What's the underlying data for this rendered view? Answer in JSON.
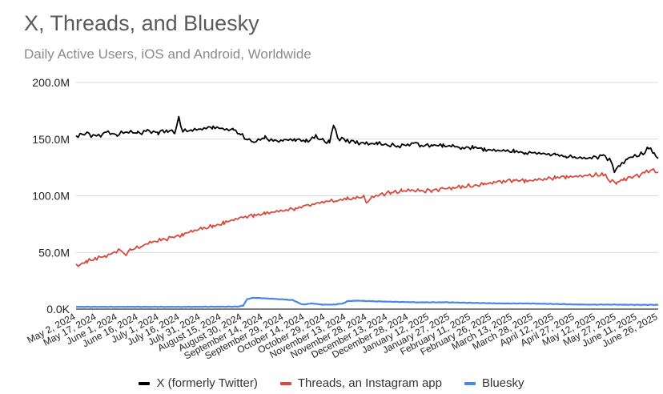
{
  "title": "X, Threads, and Bluesky",
  "subtitle": "Daily Active Users, iOS and Android, Worldwide",
  "chart_data": {
    "type": "line",
    "title": "X, Threads, and Bluesky",
    "subtitle": "Daily Active Users, iOS and Android, Worldwide",
    "xlabel": "",
    "ylabel": "",
    "ylim": [
      0,
      200
    ],
    "y_unit": "millions",
    "y_ticks": [
      0,
      50,
      100,
      150,
      200
    ],
    "y_tick_labels": [
      "0.0K",
      "50.0M",
      "100.0M",
      "150.0M",
      "200.0M"
    ],
    "grid": "horizontal",
    "legend_position": "bottom-center",
    "x_tick_labels": [
      "May 2, 2024",
      "May 17, 2024",
      "June 1, 2024",
      "June 16, 2024",
      "July 1, 2024",
      "July 16, 2024",
      "July 31, 2024",
      "August 15, 2024",
      "August 30, 2024",
      "September 14, 2024",
      "September 29, 2024",
      "October 14, 2024",
      "October 29, 2024",
      "November 13, 2024",
      "November 28, 2024",
      "December 13, 2024",
      "December 28, 2024",
      "January 12, 2025",
      "January 27, 2025",
      "February 11, 2025",
      "February 26, 2025",
      "March 13, 2025",
      "March 28, 2025",
      "April 12, 2025",
      "April 27, 2025",
      "May 12, 2025",
      "May 27, 2025",
      "June 11, 2025",
      "June 26, 2025"
    ],
    "x_day_span": [
      0,
      425
    ],
    "series": [
      {
        "name": "X (formerly Twitter)",
        "color": "#000000",
        "points": [
          [
            0,
            153
          ],
          [
            8,
            155
          ],
          [
            15,
            152
          ],
          [
            22,
            156
          ],
          [
            30,
            154
          ],
          [
            37,
            157
          ],
          [
            45,
            155
          ],
          [
            52,
            157
          ],
          [
            60,
            156
          ],
          [
            67,
            158
          ],
          [
            72,
            156
          ],
          [
            75,
            168
          ],
          [
            78,
            157
          ],
          [
            85,
            158
          ],
          [
            92,
            159
          ],
          [
            100,
            161
          ],
          [
            107,
            159
          ],
          [
            115,
            158
          ],
          [
            120,
            154
          ],
          [
            125,
            150
          ],
          [
            130,
            148
          ],
          [
            138,
            151
          ],
          [
            145,
            148
          ],
          [
            152,
            149
          ],
          [
            160,
            150
          ],
          [
            168,
            148
          ],
          [
            175,
            152
          ],
          [
            180,
            149
          ],
          [
            185,
            147
          ],
          [
            188,
            163
          ],
          [
            191,
            151
          ],
          [
            198,
            149
          ],
          [
            205,
            147
          ],
          [
            212,
            146
          ],
          [
            220,
            146
          ],
          [
            228,
            145
          ],
          [
            235,
            144
          ],
          [
            242,
            145
          ],
          [
            248,
            147
          ],
          [
            252,
            144
          ],
          [
            260,
            145
          ],
          [
            268,
            144
          ],
          [
            275,
            144
          ],
          [
            282,
            142
          ],
          [
            290,
            143
          ],
          [
            298,
            141
          ],
          [
            305,
            140
          ],
          [
            312,
            140
          ],
          [
            320,
            139
          ],
          [
            328,
            138
          ],
          [
            335,
            138
          ],
          [
            342,
            137
          ],
          [
            350,
            136
          ],
          [
            358,
            135
          ],
          [
            365,
            134
          ],
          [
            372,
            133
          ],
          [
            378,
            134
          ],
          [
            385,
            135
          ],
          [
            390,
            132
          ],
          [
            393,
            122
          ],
          [
            397,
            126
          ],
          [
            402,
            133
          ],
          [
            408,
            135
          ],
          [
            414,
            137
          ],
          [
            418,
            143
          ],
          [
            422,
            136
          ],
          [
            425,
            133
          ]
        ]
      },
      {
        "name": "Threads, an Instagram app",
        "color": "#d94a3d",
        "points": [
          [
            0,
            38
          ],
          [
            8,
            42
          ],
          [
            15,
            45
          ],
          [
            22,
            47
          ],
          [
            28,
            50
          ],
          [
            32,
            53
          ],
          [
            35,
            48
          ],
          [
            40,
            52
          ],
          [
            48,
            56
          ],
          [
            55,
            59
          ],
          [
            62,
            61
          ],
          [
            70,
            63
          ],
          [
            78,
            66
          ],
          [
            85,
            69
          ],
          [
            92,
            71
          ],
          [
            100,
            73
          ],
          [
            108,
            76
          ],
          [
            115,
            79
          ],
          [
            122,
            81
          ],
          [
            130,
            83
          ],
          [
            138,
            84
          ],
          [
            145,
            86
          ],
          [
            152,
            87
          ],
          [
            160,
            89
          ],
          [
            168,
            91
          ],
          [
            175,
            93
          ],
          [
            182,
            95
          ],
          [
            190,
            96
          ],
          [
            198,
            97
          ],
          [
            205,
            98
          ],
          [
            210,
            99
          ],
          [
            212,
            93
          ],
          [
            216,
            99
          ],
          [
            222,
            101
          ],
          [
            230,
            103
          ],
          [
            238,
            104
          ],
          [
            245,
            105
          ],
          [
            252,
            104
          ],
          [
            260,
            105
          ],
          [
            268,
            106
          ],
          [
            275,
            107
          ],
          [
            282,
            108
          ],
          [
            290,
            109
          ],
          [
            298,
            110
          ],
          [
            305,
            112
          ],
          [
            312,
            113
          ],
          [
            320,
            114
          ],
          [
            328,
            113
          ],
          [
            335,
            114
          ],
          [
            342,
            115
          ],
          [
            350,
            116
          ],
          [
            358,
            117
          ],
          [
            365,
            117
          ],
          [
            372,
            118
          ],
          [
            378,
            118
          ],
          [
            385,
            119
          ],
          [
            390,
            113
          ],
          [
            395,
            112
          ],
          [
            400,
            115
          ],
          [
            408,
            117
          ],
          [
            415,
            120
          ],
          [
            420,
            123
          ],
          [
            425,
            121
          ]
        ]
      },
      {
        "name": "Bluesky",
        "color": "#4a86e8",
        "points": [
          [
            0,
            2
          ],
          [
            40,
            2
          ],
          [
            80,
            2
          ],
          [
            118,
            2.2
          ],
          [
            122,
            3
          ],
          [
            125,
            9
          ],
          [
            130,
            10
          ],
          [
            138,
            9.5
          ],
          [
            145,
            9
          ],
          [
            152,
            8.5
          ],
          [
            158,
            8
          ],
          [
            162,
            6
          ],
          [
            165,
            4
          ],
          [
            172,
            5
          ],
          [
            180,
            4
          ],
          [
            188,
            4
          ],
          [
            195,
            5
          ],
          [
            198,
            7
          ],
          [
            205,
            7.5
          ],
          [
            215,
            7
          ],
          [
            230,
            6.5
          ],
          [
            250,
            6
          ],
          [
            270,
            6
          ],
          [
            290,
            5.5
          ],
          [
            310,
            5
          ],
          [
            330,
            5
          ],
          [
            350,
            4.5
          ],
          [
            370,
            4
          ],
          [
            390,
            4
          ],
          [
            410,
            3.8
          ],
          [
            425,
            3.8
          ]
        ]
      }
    ]
  }
}
